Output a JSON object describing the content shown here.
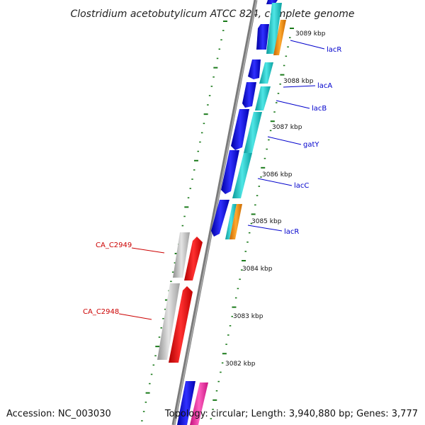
{
  "title": "Clostridium acetobutylicum ATCC 824, complete genome",
  "footer": {
    "accession": "Accession: NC_003030",
    "topology": "Topology: circular; Length: 3,940,880 bp; Genes: 3,777"
  },
  "colors": {
    "backbone": "#808080",
    "tick": "#1a7a1a",
    "blue": "#1010e0",
    "cyan": "#20c8c8",
    "orange": "#ff8c00",
    "red": "#ff1010",
    "grey": "#c0c0c0",
    "magenta": "#ff2aa0",
    "label_blue": "#0000cc",
    "label_red": "#cc0000"
  },
  "kbp_labels": [
    "3089 kbp",
    "3088 kbp",
    "3087 kbp",
    "3086 kbp",
    "3085 kbp",
    "3084 kbp",
    "3083 kbp",
    "3082 kbp"
  ],
  "gene_labels_right": [
    "lacR",
    "lacA",
    "lacB",
    "gatY",
    "lacC",
    "lacR"
  ],
  "gene_labels_left": [
    "CA_C2949",
    "CA_C2948"
  ]
}
